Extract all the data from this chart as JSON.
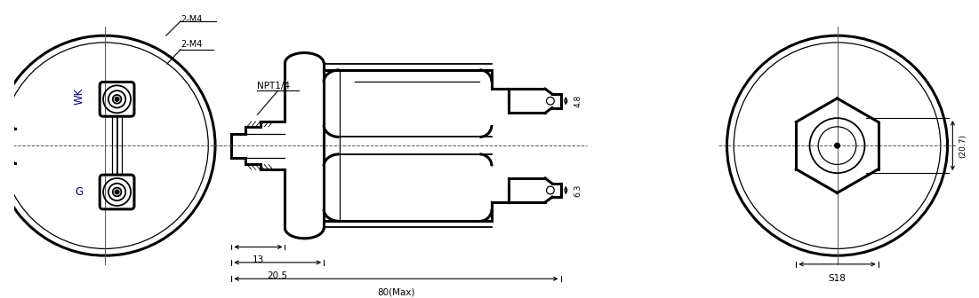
{
  "bg_color": "#ffffff",
  "line_color": "#000000",
  "label_wk": "WK",
  "label_g": "G",
  "label_2m4": "2-M4",
  "label_npt": "NPT1/4",
  "label_13": "13",
  "label_20_5": "20.5",
  "label_80": "80(Max)",
  "label_4_8": "4.8",
  "label_6_3": "6.3",
  "label_20_7": "(20.7)",
  "label_s18": "S18",
  "fig_width": 11.01,
  "fig_height": 3.36
}
